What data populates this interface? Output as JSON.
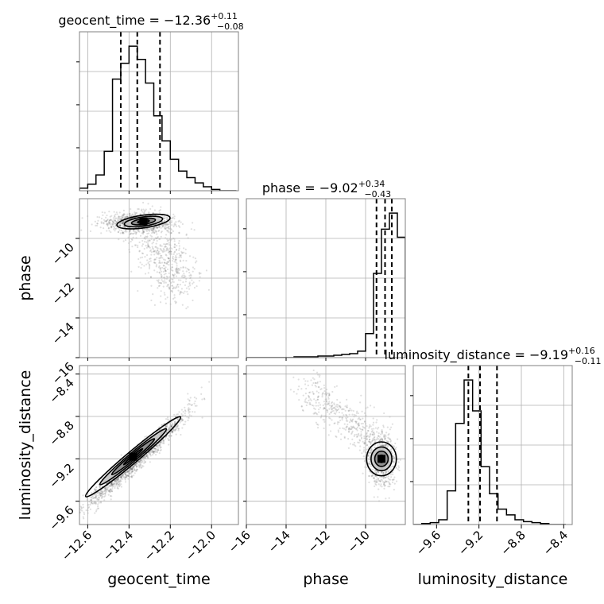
{
  "chart_data": {
    "type": "corner",
    "parameters": [
      "geocent_time",
      "phase",
      "luminosity_distance"
    ],
    "titles": [
      {
        "param": "geocent_time",
        "text": "geocent_time = −12.36",
        "plus": "+0.11",
        "minus": "−0.08"
      },
      {
        "param": "phase",
        "text": "phase = −9.02",
        "plus": "+0.34",
        "minus": "−0.43"
      },
      {
        "param": "luminosity_distance",
        "text": "luminosity_distance = −9.19",
        "plus": "+0.16",
        "minus": "−0.11"
      }
    ],
    "ranges": {
      "geocent_time": [
        -12.64,
        -11.87
      ],
      "phase": [
        -16.0,
        -8.0
      ],
      "luminosity_distance": [
        -9.82,
        -8.32
      ]
    },
    "ticks": {
      "geocent_time": {
        "values": [
          -12.6,
          -12.4,
          -12.2,
          -12.0
        ],
        "labels": [
          "−12.6",
          "−12.4",
          "−12.2",
          "−12.0"
        ]
      },
      "phase": {
        "values": [
          -16,
          -14,
          -12,
          -10
        ],
        "labels": [
          "−16",
          "−14",
          "−12",
          "−10"
        ]
      },
      "luminosity_distance": {
        "values": [
          -9.6,
          -9.2,
          -8.8,
          -8.4
        ],
        "labels": [
          "−9.6",
          "−9.2",
          "−8.8",
          "−8.4"
        ]
      }
    },
    "quantiles": {
      "geocent_time": [
        -12.44,
        -12.36,
        -12.25
      ],
      "phase": [
        -9.45,
        -9.02,
        -8.68
      ],
      "luminosity_distance": [
        -9.3,
        -9.19,
        -9.03
      ]
    },
    "histograms": {
      "geocent_time": {
        "edges": [
          -12.64,
          -12.6,
          -12.56,
          -12.52,
          -12.48,
          -12.44,
          -12.4,
          -12.36,
          -12.32,
          -12.28,
          -12.24,
          -12.2,
          -12.16,
          -12.12,
          -12.08,
          -12.04,
          -12.0,
          -11.96,
          -11.92,
          -11.88
        ],
        "counts": [
          2,
          5,
          12,
          30,
          85,
          97,
          110,
          100,
          82,
          57,
          38,
          24,
          15,
          10,
          6,
          3,
          1,
          0,
          0
        ]
      },
      "phase": {
        "edges": [
          -16.0,
          -15.6,
          -15.2,
          -14.8,
          -14.4,
          -14.0,
          -13.6,
          -13.2,
          -12.8,
          -12.4,
          -12.0,
          -11.6,
          -11.2,
          -10.8,
          -10.4,
          -10.0,
          -9.6,
          -9.2,
          -8.8,
          -8.4,
          -8.0
        ],
        "counts": [
          0,
          0,
          0,
          0,
          0,
          0,
          1,
          1,
          1,
          2,
          2,
          3,
          4,
          5,
          8,
          30,
          105,
          160,
          180,
          150
        ]
      },
      "luminosity_distance": {
        "edges": [
          -9.82,
          -9.74,
          -9.66,
          -9.58,
          -9.5,
          -9.42,
          -9.34,
          -9.26,
          -9.18,
          -9.1,
          -9.02,
          -8.94,
          -8.86,
          -8.78,
          -8.7,
          -8.62,
          -8.54,
          -8.46,
          -8.38
        ],
        "counts": [
          0,
          1,
          2,
          5,
          35,
          105,
          150,
          118,
          60,
          32,
          16,
          10,
          5,
          3,
          2,
          1,
          0,
          0
        ]
      }
    },
    "contours": {
      "geocent_time|phase": {
        "center": [
          -12.32,
          -9.2
        ],
        "samples_spread": "main mode near phase −9 to −9.5, tail toward phase −12 at geocent_time −12.2"
      },
      "geocent_time|luminosity_distance": {
        "center": [
          -12.4,
          -9.22
        ],
        "correlation": "positive"
      },
      "phase|luminosity_distance": {
        "center": [
          -9.3,
          -9.22
        ]
      }
    },
    "grid": true
  }
}
